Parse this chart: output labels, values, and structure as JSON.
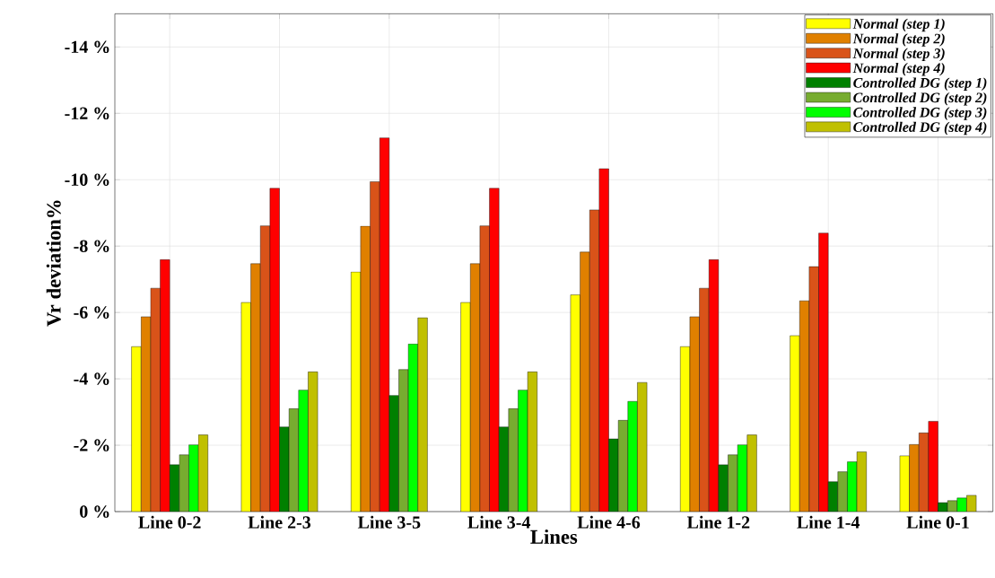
{
  "chart_data": {
    "type": "bar",
    "xlabel": "Lines",
    "ylabel": "Vr deviation%",
    "categories": [
      "Line 0-2",
      "Line 2-3",
      "Line 3-5",
      "Line 3-4",
      "Line 4-6",
      "Line 1-2",
      "Line 1-4",
      "Line 0-1"
    ],
    "series": [
      {
        "name": "Normal (step 1)",
        "color": "#ffff00",
        "values": [
          -4.97,
          -6.3,
          -7.22,
          -6.3,
          -6.53,
          -4.97,
          -5.3,
          -1.68
        ]
      },
      {
        "name": "Normal (step 2)",
        "color": "#e08000",
        "values": [
          -5.87,
          -7.47,
          -8.6,
          -7.47,
          -7.82,
          -5.87,
          -6.35,
          -2.02
        ]
      },
      {
        "name": "Normal (step 3)",
        "color": "#d95319",
        "values": [
          -6.73,
          -8.61,
          -9.94,
          -8.61,
          -9.09,
          -6.73,
          -7.38,
          -2.37
        ]
      },
      {
        "name": "Normal (step 4)",
        "color": "#ff0000",
        "values": [
          -7.59,
          -9.74,
          -11.26,
          -9.74,
          -10.33,
          -7.59,
          -8.39,
          -2.72
        ]
      },
      {
        "name": "Controlled DG (step 1)",
        "color": "#008000",
        "values": [
          -1.41,
          -2.55,
          -3.5,
          -2.55,
          -2.19,
          -1.41,
          -0.9,
          -0.27
        ]
      },
      {
        "name": "Controlled DG (step 2)",
        "color": "#77ac30",
        "values": [
          -1.71,
          -3.1,
          -4.28,
          -3.1,
          -2.75,
          -1.71,
          -1.2,
          -0.33
        ]
      },
      {
        "name": "Controlled DG (step 3)",
        "color": "#00ff00",
        "values": [
          -2.01,
          -3.66,
          -5.05,
          -3.66,
          -3.32,
          -2.01,
          -1.5,
          -0.41
        ]
      },
      {
        "name": "Controlled DG (step 4)",
        "color": "#c0c000",
        "values": [
          -2.31,
          -4.21,
          -5.84,
          -4.21,
          -3.89,
          -2.31,
          -1.8,
          -0.49
        ]
      }
    ],
    "ylim": [
      0,
      -15
    ],
    "yticks": [
      {
        "value": 0,
        "label": "0 %"
      },
      {
        "value": -2,
        "label": "-2 %"
      },
      {
        "value": -4,
        "label": "-4 %"
      },
      {
        "value": -6,
        "label": "-6 %"
      },
      {
        "value": -8,
        "label": "-8 %"
      },
      {
        "value": -10,
        "label": "-10 %"
      },
      {
        "value": -12,
        "label": "-12 %"
      },
      {
        "value": -14,
        "label": "-14 %"
      }
    ],
    "grid": true,
    "legend": "top right"
  }
}
